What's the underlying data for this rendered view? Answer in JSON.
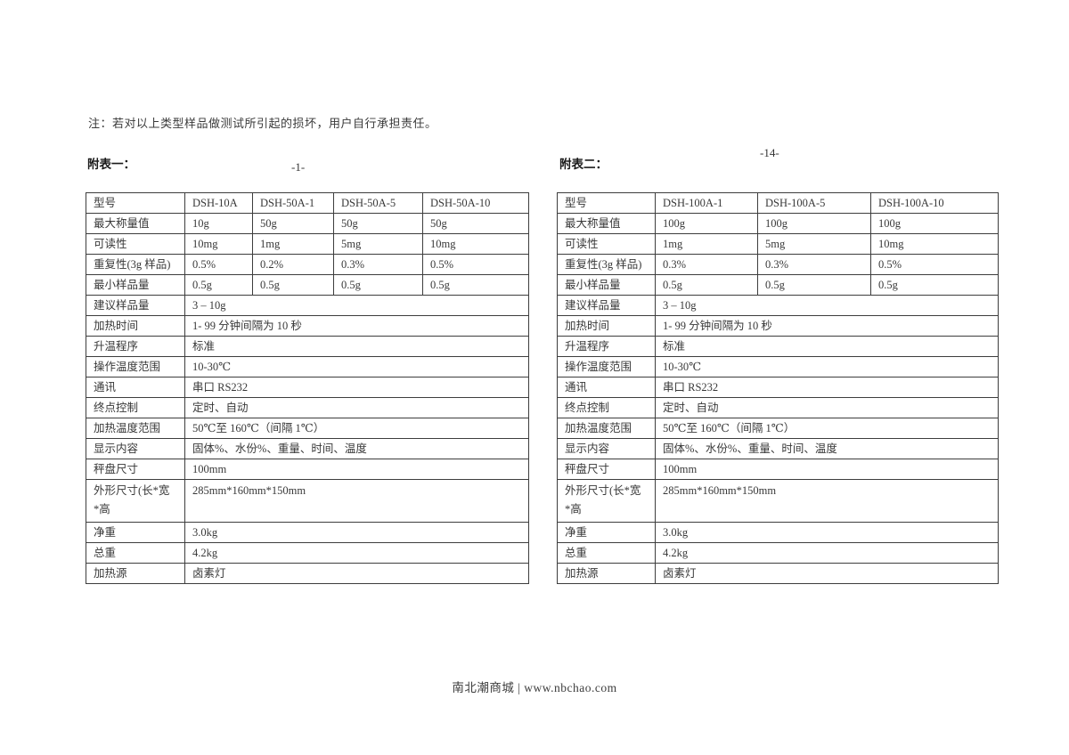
{
  "page": {
    "note": "注：若对以上类型样品做测试所引起的损坏，用户自行承担责任。",
    "footer": "南北潮商城 | www.nbchao.com"
  },
  "table1": {
    "caption": "附表一：",
    "page_number": "-1-",
    "columns": [
      "型号",
      "DSH-10A",
      "DSH-50A-1",
      "DSH-50A-5",
      "DSH-50A-10"
    ],
    "model_rows": [
      {
        "label": "最大称量值",
        "values": [
          "10g",
          "50g",
          "50g",
          "50g"
        ]
      },
      {
        "label": "可读性",
        "values": [
          "10mg",
          "1mg",
          "5mg",
          "10mg"
        ]
      },
      {
        "label": "重复性(3g 样品)",
        "values": [
          "0.5%",
          "0.2%",
          "0.3%",
          "0.5%"
        ]
      },
      {
        "label": "最小样品量",
        "values": [
          "0.5g",
          "0.5g",
          "0.5g",
          "0.5g"
        ]
      }
    ],
    "spec_rows": [
      {
        "label": "建议样品量",
        "value": "3 – 10g"
      },
      {
        "label": "加热时间",
        "value": "1- 99 分钟间隔为 10 秒"
      },
      {
        "label": "升温程序",
        "value": "标准"
      },
      {
        "label": "操作温度范围",
        "value": "10-30℃"
      },
      {
        "label": "通讯",
        "value": "串口 RS232"
      },
      {
        "label": "终点控制",
        "value": "定时、自动"
      },
      {
        "label": "加热温度范围",
        "value": "50℃至 160℃（间隔 1℃）"
      },
      {
        "label": "显示内容",
        "value": "固体%、水份%、重量、时间、温度"
      },
      {
        "label": "秤盘尺寸",
        "value": "100mm"
      },
      {
        "label": "外形尺寸(长*宽\n*高",
        "value": "285mm*160mm*150mm"
      },
      {
        "label": "净重",
        "value": "3.0kg"
      },
      {
        "label": "总重",
        "value": "4.2kg"
      },
      {
        "label": "加热源",
        "value": "卤素灯"
      }
    ]
  },
  "table2": {
    "caption": "附表二：",
    "page_number": "-14-",
    "columns": [
      "型号",
      "DSH-100A-1",
      "DSH-100A-5",
      "DSH-100A-10"
    ],
    "model_rows": [
      {
        "label": "最大称量值",
        "values": [
          "100g",
          "100g",
          "100g"
        ]
      },
      {
        "label": "可读性",
        "values": [
          "1mg",
          "5mg",
          "10mg"
        ]
      },
      {
        "label": "重复性(3g 样品)",
        "values": [
          "0.3%",
          "0.3%",
          "0.5%"
        ]
      },
      {
        "label": "最小样品量",
        "values": [
          "0.5g",
          "0.5g",
          "0.5g"
        ]
      }
    ],
    "spec_rows": [
      {
        "label": "建议样品量",
        "value": "3 – 10g"
      },
      {
        "label": "加热时间",
        "value": "1- 99 分钟间隔为 10 秒"
      },
      {
        "label": "升温程序",
        "value": "标准"
      },
      {
        "label": "操作温度范围",
        "value": "10-30℃"
      },
      {
        "label": "通讯",
        "value": "串口 RS232"
      },
      {
        "label": "终点控制",
        "value": "定时、自动"
      },
      {
        "label": "加热温度范围",
        "value": "50℃至 160℃（间隔 1℃）"
      },
      {
        "label": "显示内容",
        "value": "固体%、水份%、重量、时间、温度"
      },
      {
        "label": "秤盘尺寸",
        "value": "100mm"
      },
      {
        "label": "外形尺寸(长*宽\n*高",
        "value": "285mm*160mm*150mm"
      },
      {
        "label": "净重",
        "value": "3.0kg"
      },
      {
        "label": "总重",
        "value": "4.2kg"
      },
      {
        "label": "加热源",
        "value": "卤素灯"
      }
    ]
  }
}
